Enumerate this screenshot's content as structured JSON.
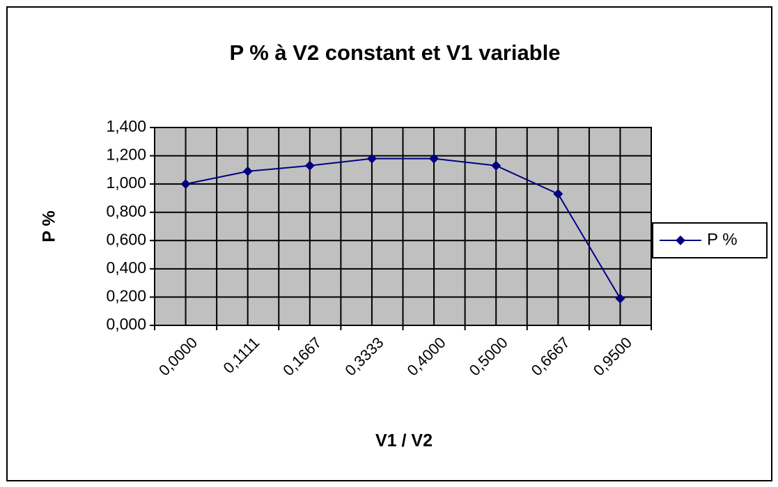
{
  "chart_data": {
    "type": "line",
    "title": "P % à V2 constant et V1 variable",
    "x_label": "V1 / V2",
    "y_label": "P %",
    "categories": [
      "0,0000",
      "0,1111",
      "0,1667",
      "0,3333",
      "0,4000",
      "0,5000",
      "0,6667",
      "0,9500"
    ],
    "series": [
      {
        "name": "P %",
        "color": "#000080",
        "values": [
          1.0,
          1.09,
          1.13,
          1.18,
          1.18,
          1.13,
          0.93,
          0.19
        ]
      }
    ],
    "ylim": [
      0,
      1.4
    ],
    "yticks": [
      {
        "value": 0,
        "label": "0,000"
      },
      {
        "value": 0.2,
        "label": "0,200"
      },
      {
        "value": 0.4,
        "label": "0,400"
      },
      {
        "value": 0.6,
        "label": "0,600"
      },
      {
        "value": 0.8,
        "label": "0,800"
      },
      {
        "value": 1.0,
        "label": "1,000"
      },
      {
        "value": 1.2,
        "label": "1,200"
      },
      {
        "value": 1.4,
        "label": "1,400"
      }
    ],
    "grid": true,
    "legend": "right"
  }
}
